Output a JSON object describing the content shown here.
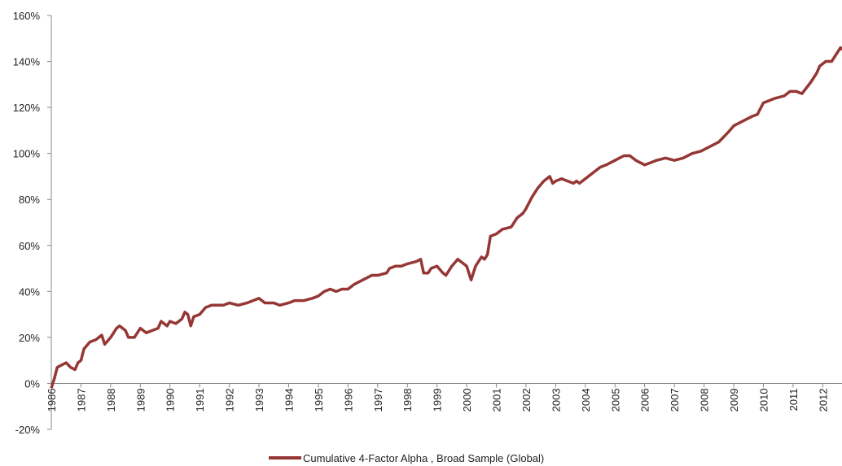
{
  "chart_data": {
    "type": "line",
    "x": [
      1986.0,
      1986.1,
      1986.2,
      1986.35,
      1986.5,
      1986.65,
      1986.8,
      1986.9,
      1987.0,
      1987.1,
      1987.3,
      1987.5,
      1987.7,
      1987.8,
      1988.0,
      1988.2,
      1988.3,
      1988.5,
      1988.6,
      1988.8,
      1989.0,
      1989.2,
      1989.4,
      1989.6,
      1989.7,
      1989.9,
      1990.0,
      1990.2,
      1990.4,
      1990.5,
      1990.6,
      1990.7,
      1990.8,
      1991.0,
      1991.2,
      1991.4,
      1991.6,
      1991.8,
      1992.0,
      1992.3,
      1992.6,
      1992.8,
      1993.0,
      1993.2,
      1993.5,
      1993.7,
      1994.0,
      1994.2,
      1994.5,
      1994.8,
      1995.0,
      1995.2,
      1995.4,
      1995.6,
      1995.8,
      1996.0,
      1996.2,
      1996.5,
      1996.8,
      1997.0,
      1997.3,
      1997.4,
      1997.6,
      1997.8,
      1998.0,
      1998.3,
      1998.45,
      1998.55,
      1998.7,
      1998.8,
      1999.0,
      1999.2,
      1999.3,
      1999.5,
      1999.7,
      2000.0,
      2000.1,
      2000.15,
      2000.3,
      2000.5,
      2000.6,
      2000.7,
      2000.8,
      2001.0,
      2001.2,
      2001.5,
      2001.7,
      2001.9,
      2002.0,
      2002.2,
      2002.4,
      2002.6,
      2002.8,
      2002.9,
      2003.0,
      2003.2,
      2003.4,
      2003.6,
      2003.7,
      2003.8,
      2004.0,
      2004.2,
      2004.5,
      2004.7,
      2005.0,
      2005.3,
      2005.5,
      2005.7,
      2006.0,
      2006.2,
      2006.4,
      2006.7,
      2007.0,
      2007.3,
      2007.6,
      2007.9,
      2008.2,
      2008.5,
      2008.8,
      2009.0,
      2009.3,
      2009.6,
      2009.8,
      2010.0,
      2010.2,
      2010.4,
      2010.7,
      2010.9,
      2011.1,
      2011.3,
      2011.6,
      2011.8,
      2011.9,
      2012.1,
      2012.3,
      2012.5,
      2012.6,
      2012.65
    ],
    "series": [
      {
        "name": "Cumulative 4-Factor Alpha , Broad Sample (Global)",
        "color": "#953735",
        "values": [
          -2,
          2,
          7,
          8,
          9,
          7,
          6,
          9,
          10,
          15,
          18,
          19,
          21,
          17,
          20,
          24,
          25,
          23,
          20,
          20,
          24,
          22,
          23,
          24,
          27,
          25,
          27,
          26,
          28,
          31,
          30,
          25,
          29,
          30,
          33,
          34,
          34,
          34,
          35,
          34,
          35,
          36,
          37,
          35,
          35,
          34,
          35,
          36,
          36,
          37,
          38,
          40,
          41,
          40,
          41,
          41,
          43,
          45,
          47,
          47,
          48,
          50,
          51,
          51,
          52,
          53,
          54,
          48,
          48,
          50,
          51,
          48,
          47,
          51,
          54,
          51,
          47,
          45,
          51,
          55,
          54,
          56,
          64,
          65,
          67,
          68,
          72,
          74,
          76,
          81,
          85,
          88,
          90,
          87,
          88,
          89,
          88,
          87,
          88,
          87,
          89,
          91,
          94,
          95,
          97,
          99,
          99,
          97,
          95,
          96,
          97,
          98,
          97,
          98,
          100,
          101,
          103,
          105,
          109,
          112,
          114,
          116,
          117,
          122,
          123,
          124,
          125,
          127,
          127,
          126,
          131,
          135,
          138,
          140,
          140,
          144,
          146,
          145
        ]
      }
    ],
    "xlim": [
      1986,
      2012.65
    ],
    "xticks": [
      1986,
      1987,
      1988,
      1989,
      1990,
      1991,
      1992,
      1993,
      1994,
      1995,
      1996,
      1997,
      1998,
      1999,
      2000,
      2001,
      2002,
      2003,
      2004,
      2005,
      2006,
      2007,
      2008,
      2009,
      2010,
      2011,
      2012
    ],
    "ylim": [
      -20,
      160
    ],
    "yticks": [
      {
        "value": -20,
        "label": "-20%"
      },
      {
        "value": 0,
        "label": "0%"
      },
      {
        "value": 20,
        "label": "20%"
      },
      {
        "value": 40,
        "label": "40%"
      },
      {
        "value": 60,
        "label": "60%"
      },
      {
        "value": 80,
        "label": "80%"
      },
      {
        "value": 100,
        "label": "100%"
      },
      {
        "value": 120,
        "label": "120%"
      },
      {
        "value": 140,
        "label": "140%"
      },
      {
        "value": 160,
        "label": "160%"
      }
    ],
    "legend": "bottom"
  }
}
